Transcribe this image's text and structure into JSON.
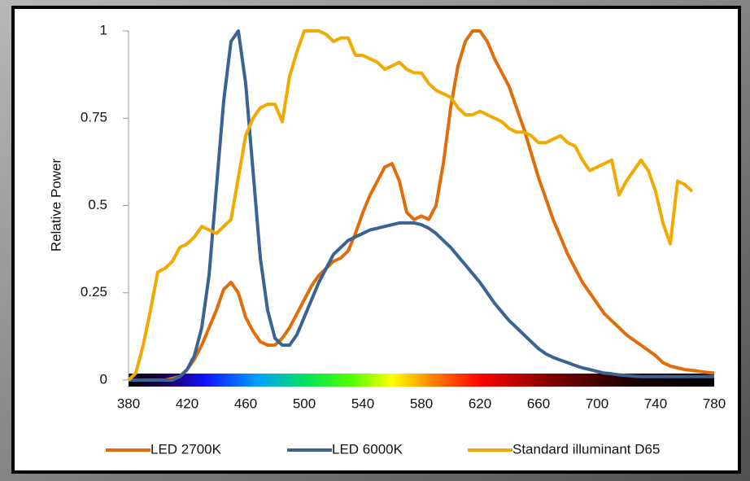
{
  "chart_data": {
    "type": "line",
    "y_label": "Relative Power",
    "x": [
      380,
      385,
      390,
      395,
      400,
      405,
      410,
      415,
      420,
      425,
      430,
      435,
      440,
      445,
      450,
      455,
      460,
      465,
      470,
      475,
      480,
      485,
      490,
      495,
      500,
      505,
      510,
      515,
      520,
      525,
      530,
      535,
      540,
      545,
      550,
      555,
      560,
      565,
      570,
      575,
      580,
      585,
      590,
      595,
      600,
      605,
      610,
      615,
      620,
      625,
      630,
      635,
      640,
      645,
      650,
      655,
      660,
      665,
      670,
      675,
      680,
      685,
      690,
      695,
      700,
      705,
      710,
      715,
      720,
      725,
      730,
      735,
      740,
      745,
      750,
      755,
      760,
      765,
      770,
      775,
      780
    ],
    "series": [
      {
        "name": "LED 2700K",
        "color": "#e36c0a",
        "values": [
          0,
          0,
          0,
          0,
          0,
          0,
          0.005,
          0.01,
          0.03,
          0.06,
          0.1,
          0.15,
          0.2,
          0.26,
          0.28,
          0.25,
          0.18,
          0.14,
          0.11,
          0.1,
          0.1,
          0.12,
          0.15,
          0.19,
          0.23,
          0.27,
          0.3,
          0.32,
          0.34,
          0.35,
          0.37,
          0.42,
          0.48,
          0.53,
          0.57,
          0.61,
          0.62,
          0.57,
          0.48,
          0.46,
          0.47,
          0.46,
          0.5,
          0.62,
          0.78,
          0.9,
          0.97,
          1.0,
          1.0,
          0.97,
          0.92,
          0.88,
          0.84,
          0.78,
          0.72,
          0.65,
          0.58,
          0.52,
          0.46,
          0.41,
          0.36,
          0.32,
          0.28,
          0.25,
          0.22,
          0.19,
          0.17,
          0.15,
          0.13,
          0.115,
          0.1,
          0.085,
          0.07,
          0.05,
          0.04,
          0.035,
          0.03,
          0.028,
          0.025,
          0.022,
          0.02
        ]
      },
      {
        "name": "LED 6000K",
        "color": "#3a6391",
        "values": [
          0,
          0,
          0,
          0,
          0,
          0,
          0,
          0.01,
          0.03,
          0.07,
          0.15,
          0.3,
          0.55,
          0.8,
          0.97,
          1.0,
          0.85,
          0.6,
          0.35,
          0.2,
          0.12,
          0.1,
          0.1,
          0.13,
          0.18,
          0.23,
          0.28,
          0.32,
          0.36,
          0.38,
          0.4,
          0.41,
          0.42,
          0.43,
          0.435,
          0.44,
          0.445,
          0.45,
          0.45,
          0.45,
          0.445,
          0.435,
          0.42,
          0.4,
          0.38,
          0.355,
          0.33,
          0.305,
          0.28,
          0.25,
          0.22,
          0.195,
          0.17,
          0.15,
          0.13,
          0.11,
          0.09,
          0.075,
          0.065,
          0.057,
          0.05,
          0.042,
          0.035,
          0.03,
          0.025,
          0.02,
          0.018,
          0.015,
          0.013,
          0.011,
          0.01,
          0.01,
          0.01,
          0.01,
          0.01,
          0.01,
          0.01,
          0.01,
          0.01,
          0.01,
          0.01
        ]
      },
      {
        "name": "Standard illuminant D65",
        "color": "#f2a900",
        "values": [
          0,
          0.02,
          0.1,
          0.2,
          0.31,
          0.32,
          0.34,
          0.38,
          0.39,
          0.41,
          0.44,
          0.43,
          0.42,
          0.44,
          0.46,
          0.58,
          0.7,
          0.75,
          0.78,
          0.79,
          0.79,
          0.74,
          0.87,
          0.94,
          1.0,
          1.0,
          1.0,
          0.99,
          0.97,
          0.98,
          0.98,
          0.93,
          0.93,
          0.92,
          0.91,
          0.89,
          0.9,
          0.91,
          0.89,
          0.88,
          0.88,
          0.85,
          0.83,
          0.82,
          0.81,
          0.78,
          0.76,
          0.76,
          0.77,
          0.76,
          0.75,
          0.74,
          0.72,
          0.71,
          0.71,
          0.7,
          0.68,
          0.68,
          0.69,
          0.7,
          0.68,
          0.67,
          0.63,
          0.6,
          0.61,
          0.62,
          0.63,
          0.53,
          0.57,
          0.6,
          0.63,
          0.6,
          0.54,
          0.45,
          0.39,
          0.57,
          0.56,
          0.54,
          null,
          null,
          null
        ]
      }
    ],
    "xlim": [
      380,
      780
    ],
    "ylim": [
      0,
      1
    ],
    "xticks": [
      380,
      420,
      460,
      500,
      540,
      580,
      620,
      660,
      700,
      740,
      780
    ],
    "yticks": [
      0,
      0.25,
      0.5,
      0.75,
      1
    ],
    "legend": "bottom"
  }
}
